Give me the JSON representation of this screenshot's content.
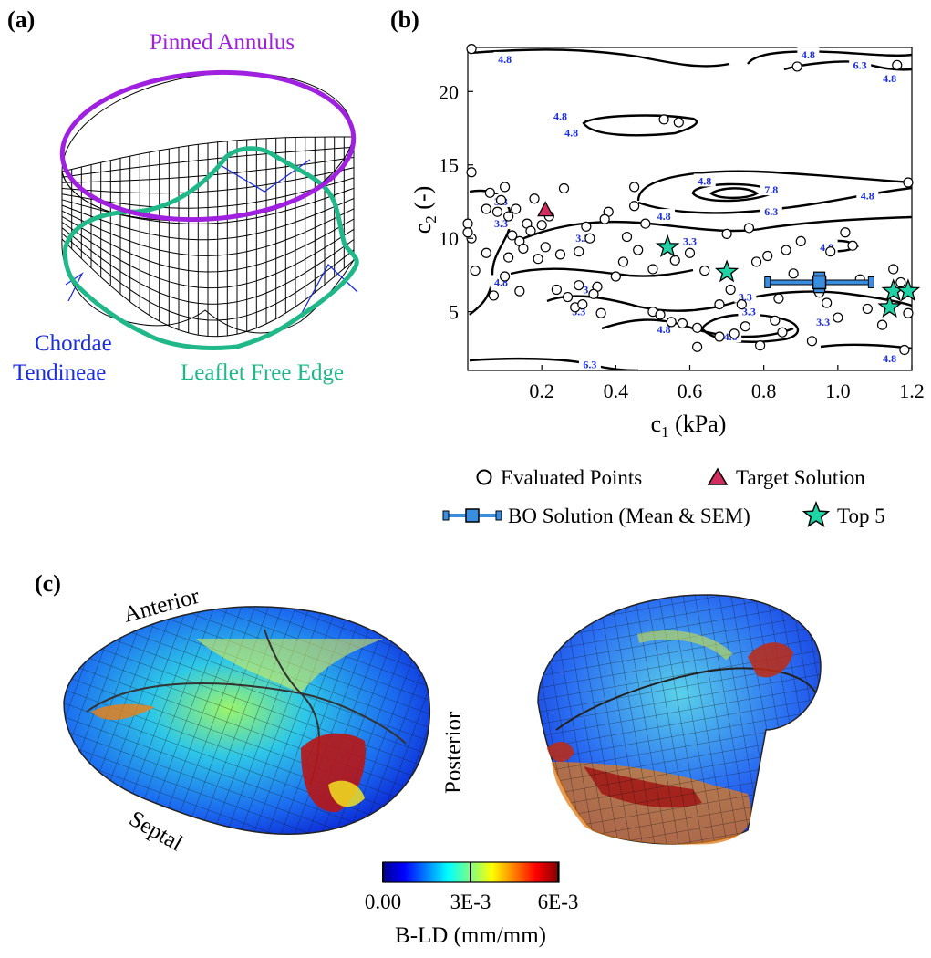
{
  "panels": {
    "a": {
      "label": "(a)",
      "annulus_label": "Pinned Annulus",
      "chordae_label_line1": "Chordae",
      "chordae_label_line2": "Tendineae",
      "free_edge_label": "Leaflet Free Edge",
      "colors": {
        "annulus": "#a020e0",
        "free_edge": "#20b889",
        "chordae": "#1a2ee0"
      }
    },
    "b": {
      "label": "(b)",
      "xlabel_main": "c",
      "xlabel_sub": "1",
      "xlabel_unit": " (kPa)",
      "ylabel_main": "c",
      "ylabel_sub": "2",
      "ylabel_unit": " (-)",
      "legend": {
        "evaluated": "Evaluated Points",
        "target": "Target Solution",
        "bo": "BO Solution (Mean & SEM)",
        "top5": "Top 5"
      }
    },
    "c": {
      "label": "(c)",
      "anterior": "Anterior",
      "posterior": "Posterior",
      "septal": "Septal",
      "colorbar": {
        "ticks": [
          "0.00",
          "3E-3",
          "6E-3"
        ],
        "label": "B-LD (mm/mm)"
      }
    }
  },
  "chart_data": {
    "type": "scatter",
    "xlabel": "c1 (kPa)",
    "ylabel": "c2 (-)",
    "xlim": [
      0.0,
      1.2
    ],
    "ylim": [
      1.0,
      23.0
    ],
    "x_ticks": [
      0.2,
      0.4,
      0.6,
      0.8,
      1.0,
      1.2
    ],
    "x_tick_labels": [
      "0.2",
      "0.4",
      "0.6",
      "0.8",
      "1.0",
      "1.2"
    ],
    "y_ticks": [
      5,
      10,
      15,
      20
    ],
    "y_tick_labels": [
      "5",
      "10",
      "15",
      "20"
    ],
    "contour_labels": [
      {
        "text": "4.8",
        "x": 0.1,
        "y": 22.2
      },
      {
        "text": "4.8",
        "x": 0.92,
        "y": 22.5
      },
      {
        "text": "6.3",
        "x": 1.06,
        "y": 21.8
      },
      {
        "text": "4.8",
        "x": 1.14,
        "y": 20.9
      },
      {
        "text": "4.8",
        "x": 0.25,
        "y": 18.3
      },
      {
        "text": "4.8",
        "x": 0.28,
        "y": 17.2
      },
      {
        "text": "4.8",
        "x": 0.64,
        "y": 13.9
      },
      {
        "text": "4.8",
        "x": 1.08,
        "y": 12.9
      },
      {
        "text": "7.8",
        "x": 0.82,
        "y": 13.3
      },
      {
        "text": "6.3",
        "x": 0.82,
        "y": 11.8
      },
      {
        "text": "4.8",
        "x": 0.53,
        "y": 11.5
      },
      {
        "text": "3.3",
        "x": 0.09,
        "y": 12.5
      },
      {
        "text": "3.3",
        "x": 0.09,
        "y": 11.0
      },
      {
        "text": "3.3",
        "x": 0.31,
        "y": 10.0
      },
      {
        "text": "3.3",
        "x": 0.6,
        "y": 9.8
      },
      {
        "text": "4.8",
        "x": 0.97,
        "y": 9.4
      },
      {
        "text": "4.8",
        "x": 0.09,
        "y": 7.0
      },
      {
        "text": "3.3",
        "x": 0.33,
        "y": 6.5
      },
      {
        "text": "3.3",
        "x": 0.3,
        "y": 5.0
      },
      {
        "text": "3.3",
        "x": 0.75,
        "y": 6.0
      },
      {
        "text": "3.3",
        "x": 0.76,
        "y": 5.0
      },
      {
        "text": "3.3",
        "x": 0.96,
        "y": 4.3
      },
      {
        "text": "4.8",
        "x": 0.53,
        "y": 3.8
      },
      {
        "text": "4.8",
        "x": 0.71,
        "y": 3.3
      },
      {
        "text": "6.3",
        "x": 0.33,
        "y": 1.4
      },
      {
        "text": "4.8",
        "x": 1.14,
        "y": 1.8
      }
    ],
    "series": [
      {
        "name": "Evaluated Points",
        "x": [
          0.01,
          0.01,
          0.0,
          0.01,
          0.0,
          0.02,
          0.07,
          0.05,
          0.09,
          0.06,
          0.1,
          0.13,
          0.11,
          0.16,
          0.12,
          0.18,
          0.08,
          0.14,
          0.11,
          0.15,
          0.2,
          0.22,
          0.1,
          0.24,
          0.27,
          0.29,
          0.31,
          0.35,
          0.4,
          0.42,
          0.46,
          0.43,
          0.48,
          0.38,
          0.33,
          0.3,
          0.34,
          0.5,
          0.52,
          0.55,
          0.58,
          0.62,
          0.68,
          0.71,
          0.64,
          0.6,
          0.7,
          0.78,
          0.81,
          0.76,
          0.86,
          0.88,
          0.9,
          0.95,
          0.98,
          1.02,
          1.06,
          1.08,
          1.12,
          1.15,
          1.17,
          1.19,
          1.18,
          0.85,
          0.68,
          0.72,
          0.75,
          0.57,
          0.53,
          0.45,
          0.26,
          0.3,
          0.36,
          0.62,
          0.79,
          0.84,
          0.97,
          1.0,
          1.16,
          1.19,
          0.19,
          0.17,
          0.21,
          0.05,
          0.14,
          0.25,
          0.45,
          0.37,
          0.32,
          0.5,
          0.56,
          0.74,
          0.83,
          0.93,
          0.89,
          1.04
        ],
        "y": [
          22.9,
          14.5,
          11.0,
          10.0,
          10.4,
          7.8,
          6.1,
          12.0,
          12.6,
          13.1,
          13.5,
          12.0,
          11.5,
          11.0,
          10.2,
          12.7,
          11.8,
          9.8,
          8.7,
          9.3,
          10.9,
          11.5,
          7.4,
          6.5,
          6.0,
          5.3,
          5.5,
          6.7,
          7.4,
          8.4,
          9.2,
          10.1,
          11.0,
          11.8,
          10.0,
          9.1,
          6.2,
          5.0,
          4.8,
          4.3,
          4.2,
          3.9,
          5.5,
          6.5,
          7.8,
          9.0,
          10.3,
          8.4,
          8.8,
          10.7,
          9.2,
          7.6,
          9.8,
          6.3,
          9.1,
          10.4,
          7.2,
          5.2,
          4.1,
          7.9,
          7.0,
          4.9,
          2.4,
          3.6,
          3.3,
          3.5,
          4.0,
          17.9,
          18.1,
          13.5,
          13.4,
          6.8,
          4.9,
          2.6,
          2.7,
          5.9,
          5.6,
          4.6,
          21.8,
          13.8,
          8.6,
          10.5,
          9.4,
          9.0,
          6.4,
          8.9,
          12.2,
          11.3,
          10.8,
          7.9,
          8.5,
          5.5,
          4.4,
          3.0,
          21.7,
          9.5
        ]
      },
      {
        "name": "Target Solution",
        "x": [
          0.21
        ],
        "y": [
          11.9
        ]
      },
      {
        "name": "BO Solution (Mean & SEM)",
        "x": [
          0.95
        ],
        "y": [
          7.0
        ],
        "x_err": [
          0.14
        ],
        "y_err": [
          0.7
        ]
      },
      {
        "name": "Top 5",
        "x": [
          0.54,
          0.7,
          1.14,
          1.15,
          1.19
        ],
        "y": [
          9.4,
          7.7,
          5.3,
          6.4,
          6.4
        ]
      }
    ]
  }
}
